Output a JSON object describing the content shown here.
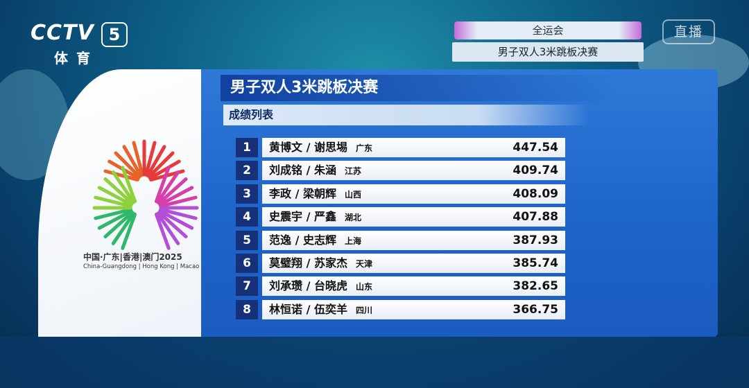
{
  "header": {
    "logo": "CCTV",
    "channel_number": "5",
    "channel_name": "体育",
    "event_tag": "全运会",
    "event_name": "男子双人3米跳板决赛",
    "live": "直播"
  },
  "emblem": {
    "text": "中国·广东|香港|澳门2025",
    "subtext": "China-Guangdong | Hong Kong | Macao"
  },
  "results": {
    "title": "男子双人3米跳板决赛",
    "subtitle": "成绩列表",
    "rows": [
      {
        "rank": "1",
        "names": "黄博文 / 谢思埸",
        "region": "广东",
        "score": "447.54"
      },
      {
        "rank": "2",
        "names": "刘成铭 / 朱涵",
        "region": "江苏",
        "score": "409.74"
      },
      {
        "rank": "3",
        "names": "李政 / 梁朝辉",
        "region": "山西",
        "score": "408.09"
      },
      {
        "rank": "4",
        "names": "史震宇 / 严鑫",
        "region": "湖北",
        "score": "407.88"
      },
      {
        "rank": "5",
        "names": "范逸 / 史志辉",
        "region": "上海",
        "score": "387.93"
      },
      {
        "rank": "6",
        "names": "莫璧翔 / 苏家杰",
        "region": "天津",
        "score": "385.74"
      },
      {
        "rank": "7",
        "names": "刘承瓒 / 台晓虎",
        "region": "山东",
        "score": "382.65"
      },
      {
        "rank": "8",
        "names": "林恒诺 / 伍奕羊",
        "region": "四川",
        "score": "366.75"
      }
    ]
  }
}
